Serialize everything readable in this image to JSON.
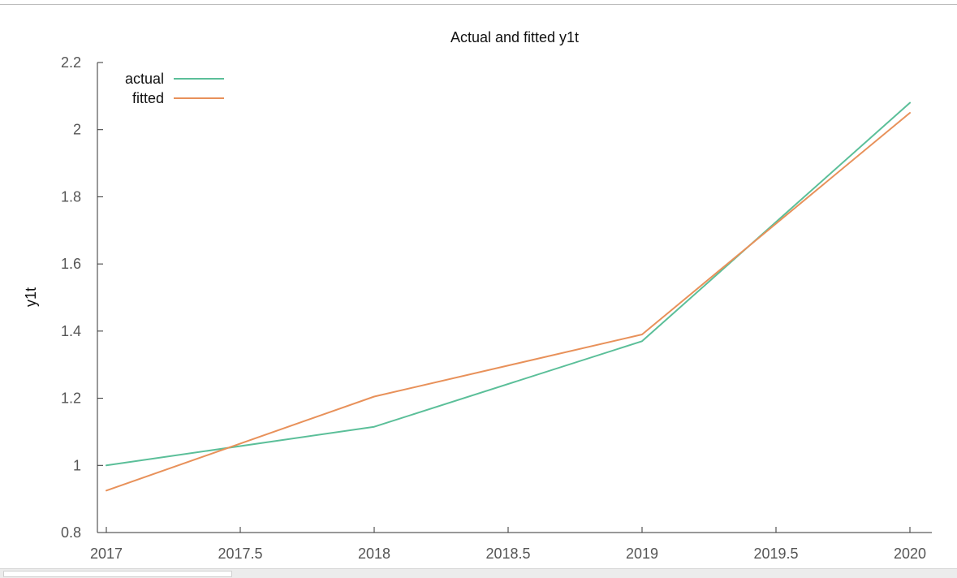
{
  "chart_data": {
    "type": "line",
    "title": "Actual and fitted y1t",
    "xlabel": "",
    "ylabel": "y1t",
    "xlim": [
      2017,
      2020
    ],
    "ylim": [
      0.8,
      2.2
    ],
    "x_ticks": [
      2017,
      2017.5,
      2018,
      2018.5,
      2019,
      2019.5,
      2020
    ],
    "x_tick_labels": [
      "2017",
      "2017.5",
      "2018",
      "2018.5",
      "2019",
      "2019.5",
      "2020"
    ],
    "y_ticks": [
      0.8,
      1,
      1.2,
      1.4,
      1.6,
      1.8,
      2,
      2.2
    ],
    "y_tick_labels": [
      "0.8",
      "1",
      "1.2",
      "1.4",
      "1.6",
      "1.8",
      "2",
      "2.2"
    ],
    "grid": false,
    "legend_position": "top-left",
    "series": [
      {
        "name": "actual",
        "color": "#5bbf99",
        "x": [
          2017,
          2018,
          2019,
          2020
        ],
        "y": [
          1.0,
          1.115,
          1.37,
          2.08
        ]
      },
      {
        "name": "fitted",
        "color": "#e8915a",
        "x": [
          2017,
          2018,
          2019,
          2020
        ],
        "y": [
          0.925,
          1.205,
          1.39,
          2.05
        ]
      }
    ]
  }
}
